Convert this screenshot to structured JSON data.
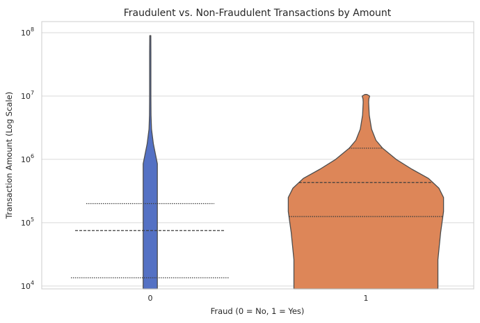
{
  "chart_data": {
    "type": "violin",
    "title": "Fraudulent vs. Non-Fraudulent Transactions by Amount",
    "xlabel": "Fraud (0 = No, 1 = Yes)",
    "ylabel": "Transaction Amount (Log Scale)",
    "yscale": "log",
    "ylim": [
      9000,
      150000000
    ],
    "yticks": [
      {
        "value": 10000,
        "base": "10",
        "exp": "4"
      },
      {
        "value": 100000,
        "base": "10",
        "exp": "5"
      },
      {
        "value": 1000000,
        "base": "10",
        "exp": "6"
      },
      {
        "value": 10000000,
        "base": "10",
        "exp": "7"
      },
      {
        "value": 100000000,
        "base": "10",
        "exp": "8"
      }
    ],
    "grid": true,
    "categories": [
      "0",
      "1"
    ],
    "series": [
      {
        "category": "0",
        "color": "#5471c4",
        "quartiles": {
          "q1": 13500,
          "median": 75000,
          "q3": 200000
        },
        "profile": [
          {
            "y": 9000,
            "w": 0.34
          },
          {
            "y": 850000,
            "w": 0.34
          },
          {
            "y": 1750000,
            "w": 0.15
          },
          {
            "y": 3000000,
            "w": 0.06
          },
          {
            "y": 5000000,
            "w": 0.035
          },
          {
            "y": 10000000,
            "w": 0.03
          },
          {
            "y": 50000000,
            "w": 0.03
          },
          {
            "y": 90000000,
            "w": 0.025
          }
        ]
      },
      {
        "category": "1",
        "color": "#dd8658",
        "quartiles": {
          "q1": 125000,
          "median": 430000,
          "q3": 1500000
        },
        "profile": [
          {
            "y": 9000,
            "w": 3.45
          },
          {
            "y": 26000,
            "w": 3.45
          },
          {
            "y": 70000,
            "w": 3.58
          },
          {
            "y": 150000,
            "w": 3.72
          },
          {
            "y": 250000,
            "w": 3.72
          },
          {
            "y": 350000,
            "w": 3.5
          },
          {
            "y": 500000,
            "w": 3.0
          },
          {
            "y": 700000,
            "w": 2.2
          },
          {
            "y": 1000000,
            "w": 1.45
          },
          {
            "y": 1500000,
            "w": 0.8
          },
          {
            "y": 2000000,
            "w": 0.48
          },
          {
            "y": 3000000,
            "w": 0.27
          },
          {
            "y": 5000000,
            "w": 0.16
          },
          {
            "y": 8000000,
            "w": 0.13
          },
          {
            "y": 9000000,
            "w": 0.14
          },
          {
            "y": 10000000,
            "w": 0.18
          },
          {
            "y": 10600000,
            "w": 0.05
          }
        ]
      }
    ]
  }
}
